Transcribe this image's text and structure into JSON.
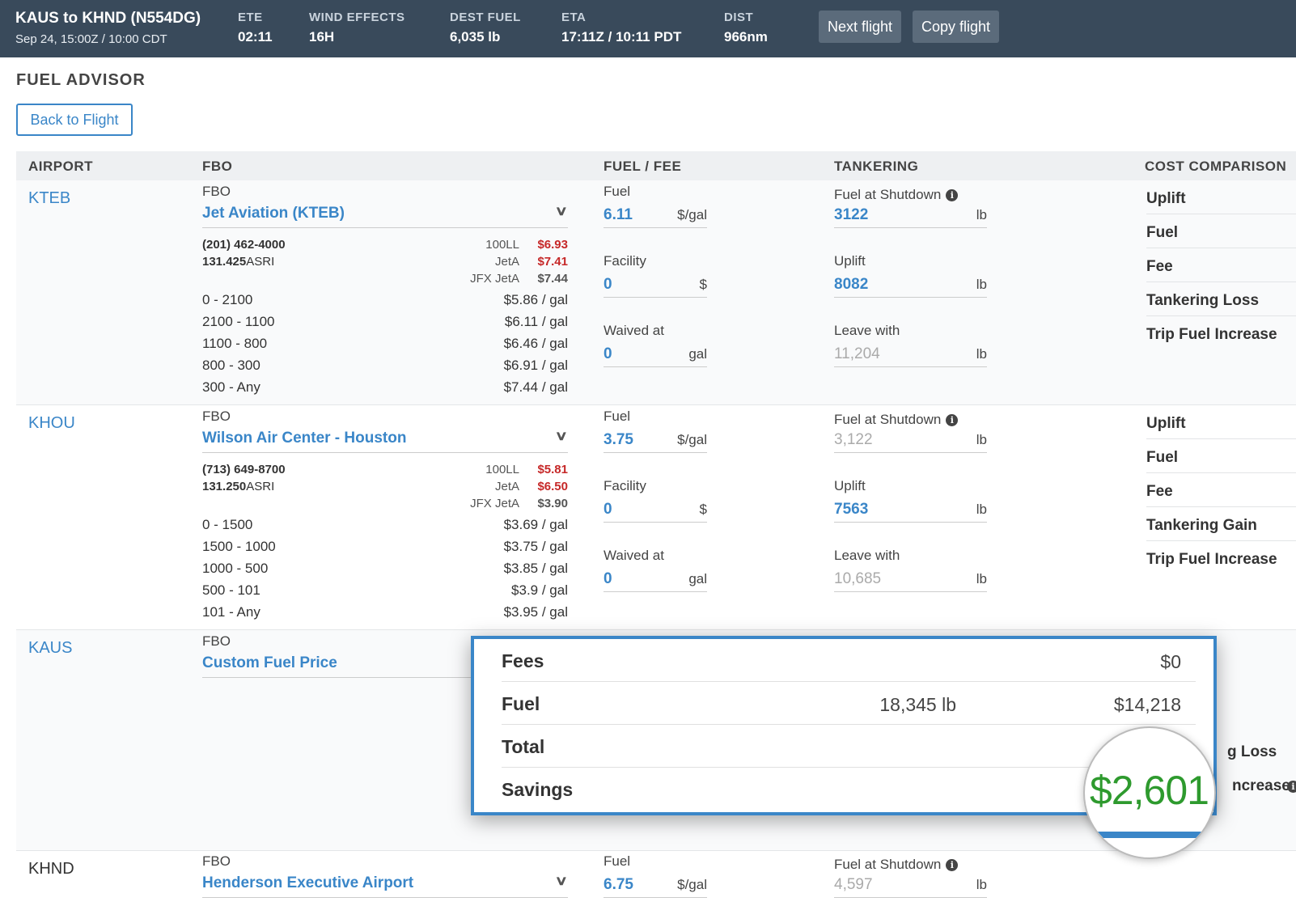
{
  "header": {
    "route": "KAUS to KHND (N554DG)",
    "departure": "Sep 24, 15:00Z / 10:00 CDT",
    "stats": [
      {
        "label": "ETE",
        "value": "02:11"
      },
      {
        "label": "WIND EFFECTS",
        "value": "16H"
      },
      {
        "label": "DEST FUEL",
        "value": "6,035 lb"
      },
      {
        "label": "ETA",
        "value": "17:11Z / 10:11 PDT"
      },
      {
        "label": "DIST",
        "value": "966nm"
      }
    ],
    "next_flight": "Next flight",
    "copy_flight": "Copy flight"
  },
  "page_title": "FUEL ADVISOR",
  "back_to_flight": "Back to Flight",
  "columns": {
    "airport": "AIRPORT",
    "fbo": "FBO",
    "fuel_fee": "FUEL / FEE",
    "tankering": "TANKERING",
    "cost_comparison": "COST COMPARISON"
  },
  "labels": {
    "fbo": "FBO",
    "fuel": "Fuel",
    "facility": "Facility",
    "waived_at": "Waived at",
    "fuel_at_shutdown": "Fuel at Shutdown",
    "uplift": "Uplift",
    "leave_with": "Leave with",
    "unit_gal_price": "$/gal",
    "unit_dollar": "$",
    "unit_gal": "gal",
    "unit_lb": "lb"
  },
  "rows": [
    {
      "airport": "KTEB",
      "fbo": "Jet Aviation (KTEB)",
      "phone": "(201) 462-4000",
      "freq": "131.425",
      "freq_suffix": "ASRI",
      "prices": [
        {
          "type": "100LL",
          "value": "$6.93"
        },
        {
          "type": "JetA",
          "value": "$7.41"
        },
        {
          "type": "JFX JetA",
          "value": "$7.44"
        }
      ],
      "tiers": [
        {
          "range": "0 - 2100",
          "price": "$5.86 / gal"
        },
        {
          "range": "2100 - 1100",
          "price": "$6.11 / gal"
        },
        {
          "range": "1100 - 800",
          "price": "$6.46 / gal"
        },
        {
          "range": "800 - 300",
          "price": "$6.91 / gal"
        },
        {
          "range": "300 - Any",
          "price": "$7.44 / gal"
        }
      ],
      "fuel": "6.11",
      "facility": "0",
      "waived_at": "0",
      "fuel_at_shutdown": "3122",
      "uplift": "8082",
      "leave_with": "11,204",
      "cost_items": [
        "Uplift",
        "Fuel",
        "Fee",
        "Tankering Loss",
        "Trip Fuel Increase"
      ]
    },
    {
      "airport": "KHOU",
      "fbo": "Wilson Air Center - Houston",
      "phone": "(713) 649-8700",
      "freq": "131.250",
      "freq_suffix": "ASRI",
      "prices": [
        {
          "type": "100LL",
          "value": "$5.81"
        },
        {
          "type": "JetA",
          "value": "$6.50"
        },
        {
          "type": "JFX JetA",
          "value": "$3.90"
        }
      ],
      "tiers": [
        {
          "range": "0 - 1500",
          "price": "$3.69 / gal"
        },
        {
          "range": "1500 - 1000",
          "price": "$3.75 / gal"
        },
        {
          "range": "1000 - 500",
          "price": "$3.85 / gal"
        },
        {
          "range": "500 - 101",
          "price": "$3.9 / gal"
        },
        {
          "range": "101 - Any",
          "price": "$3.95 / gal"
        }
      ],
      "fuel": "3.75",
      "facility": "0",
      "waived_at": "0",
      "fuel_at_shutdown": "3,122",
      "uplift": "7563",
      "leave_with": "10,685",
      "cost_items": [
        "Uplift",
        "Fuel",
        "Fee",
        "Tankering Gain",
        "Trip Fuel Increase"
      ]
    },
    {
      "airport": "KAUS",
      "fbo": "Custom Fuel Price",
      "cost_fragments": [
        "g Loss",
        "ncrease"
      ]
    },
    {
      "airport": "KHND",
      "fbo": "Henderson Executive Airport",
      "fuel": "6.75",
      "fuel_at_shutdown": "4,597"
    }
  ],
  "popup": {
    "fees_label": "Fees",
    "fees_value": "$0",
    "fuel_label": "Fuel",
    "fuel_qty": "18,345 lb",
    "fuel_value": "$14,218",
    "total_label": "Total",
    "savings_label": "Savings",
    "savings_value": "$2,601"
  },
  "colors": {
    "header_bg": "#394a5b",
    "accent": "#3a86c8",
    "price_red": "#c62828",
    "savings_green": "#2e9a2e"
  }
}
